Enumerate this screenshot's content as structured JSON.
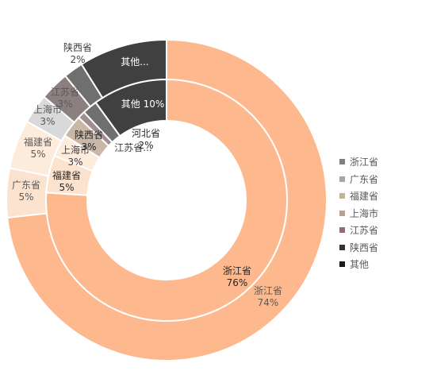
{
  "chart_data": {
    "type": "donut",
    "rings": [
      {
        "ring": "outer",
        "slices": [
          {
            "name": "浙江省",
            "value": 74,
            "label": "浙江省\n74%",
            "color": "#FDB88D"
          },
          {
            "name": "广东省",
            "value": 5,
            "label": "广东省\n5%",
            "color": "#FCE3CF"
          },
          {
            "name": "福建省",
            "value": 5,
            "label": "福建省\n5%",
            "color": "#FDEBDC"
          },
          {
            "name": "上海市",
            "value": 3,
            "label": "上海市\n3%",
            "color": "#D9D9D9"
          },
          {
            "name": "江苏省",
            "value": 3,
            "label": "江苏省\n3%",
            "color": "#8C7F80"
          },
          {
            "name": "陕西省",
            "value": 2,
            "label": "陕西省\n2%",
            "color": "#6F6F6F"
          },
          {
            "name": "其他",
            "value": 9,
            "label": "其他...",
            "color": "#404040"
          }
        ]
      },
      {
        "ring": "inner",
        "slices": [
          {
            "name": "浙江省",
            "value": 76,
            "label": "浙江省\n76%",
            "color": "#FDB88D"
          },
          {
            "name": "福建省",
            "value": 5,
            "label": "福建省\n5%",
            "color": "#FCE3CF"
          },
          {
            "name": "上海市",
            "value": 3,
            "label": "上海市\n3%",
            "color": "#FDEBDC"
          },
          {
            "name": "陕西省",
            "value": 3,
            "label": "陕西省\n3%",
            "color": "#C9B7A8"
          },
          {
            "name": "江苏省",
            "value": 1,
            "label": "江苏省...",
            "color": "#A08F90"
          },
          {
            "name": "河北省",
            "value": 2,
            "label": "河北省\n2%",
            "color": "#6F6F6F"
          },
          {
            "name": "其他",
            "value": 10,
            "label": "其他 10%",
            "color": "#404040"
          }
        ]
      }
    ],
    "legend": {
      "position": "right",
      "entries": [
        {
          "name": "浙江省",
          "color": "#7F7F7F"
        },
        {
          "name": "广东省",
          "color": "#A5A8A1"
        },
        {
          "name": "福建省",
          "color": "#C2B48C"
        },
        {
          "name": "上海市",
          "color": "#B8A298"
        },
        {
          "name": "江苏省",
          "color": "#8E6E73"
        },
        {
          "name": "陕西省",
          "color": "#333333"
        },
        {
          "name": "其他",
          "color": "#1A1A1A"
        }
      ]
    }
  }
}
